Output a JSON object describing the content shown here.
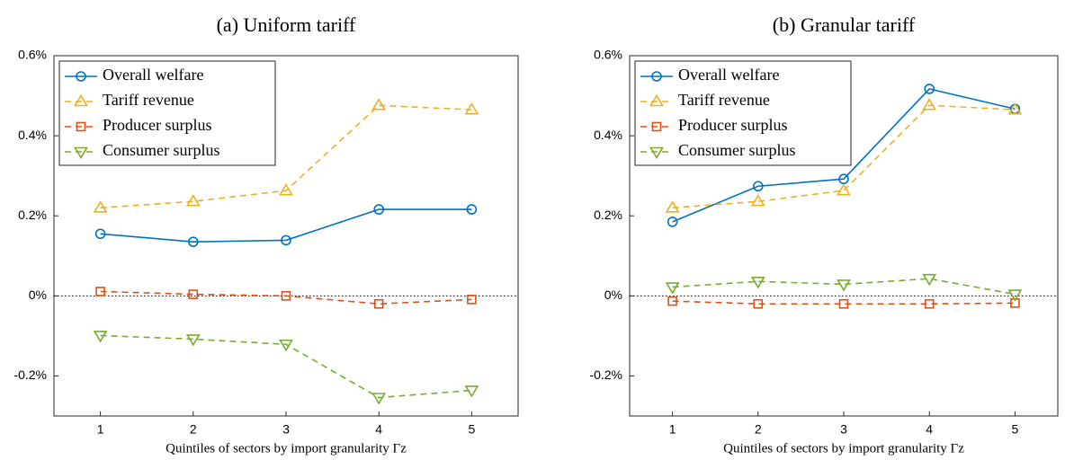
{
  "chart_data": [
    {
      "type": "line",
      "title": "(a) Uniform tariff",
      "xlabel": "Quintiles of sectors by import granularity Γz",
      "x": [
        1,
        2,
        3,
        4,
        5
      ],
      "xlim": [
        0.5,
        5.5
      ],
      "xticks": [
        1,
        2,
        3,
        4,
        5
      ],
      "ylim": [
        -0.3,
        0.6
      ],
      "yticks": [
        {
          "value": -0.2,
          "label": "-0.2%"
        },
        {
          "value": 0,
          "label": "0%"
        },
        {
          "value": 0.2,
          "label": "0.2%"
        },
        {
          "value": 0.4,
          "label": "0.4%"
        },
        {
          "value": 0.6,
          "label": "0.6%"
        }
      ],
      "legend": "upper left",
      "zero_line": true,
      "series": [
        {
          "name": "Overall welfare",
          "color": "#0072BD",
          "marker": "o",
          "linestyle": "solid",
          "values": [
            0.155,
            0.135,
            0.139,
            0.216,
            0.216
          ]
        },
        {
          "name": "Tariff revenue",
          "color": "#EDB120",
          "marker": "^",
          "linestyle": "dashed",
          "values": [
            0.22,
            0.236,
            0.263,
            0.476,
            0.465
          ]
        },
        {
          "name": "Producer surplus",
          "color": "#D95319",
          "marker": "s",
          "linestyle": "dashed",
          "values": [
            0.011,
            0.004,
            0.0,
            -0.02,
            -0.009
          ]
        },
        {
          "name": "Consumer surplus",
          "color": "#77AC30",
          "marker": "v",
          "linestyle": "dashed",
          "values": [
            -0.099,
            -0.108,
            -0.121,
            -0.254,
            -0.236
          ]
        }
      ]
    },
    {
      "type": "line",
      "title": "(b) Granular tariff",
      "xlabel": "Quintiles of sectors by import granularity Γz",
      "x": [
        1,
        2,
        3,
        4,
        5
      ],
      "xlim": [
        0.5,
        5.5
      ],
      "xticks": [
        1,
        2,
        3,
        4,
        5
      ],
      "ylim": [
        -0.3,
        0.6
      ],
      "yticks": [
        {
          "value": -0.2,
          "label": "-0.2%"
        },
        {
          "value": 0,
          "label": "0%"
        },
        {
          "value": 0.2,
          "label": "0.2%"
        },
        {
          "value": 0.4,
          "label": "0.4%"
        },
        {
          "value": 0.6,
          "label": "0.6%"
        }
      ],
      "legend": "upper left",
      "zero_line": true,
      "series": [
        {
          "name": "Overall welfare",
          "color": "#0072BD",
          "marker": "o",
          "linestyle": "solid",
          "values": [
            0.185,
            0.274,
            0.292,
            0.517,
            0.467
          ]
        },
        {
          "name": "Tariff revenue",
          "color": "#EDB120",
          "marker": "^",
          "linestyle": "dashed",
          "values": [
            0.22,
            0.236,
            0.263,
            0.476,
            0.465
          ]
        },
        {
          "name": "Producer surplus",
          "color": "#D95319",
          "marker": "s",
          "linestyle": "dashed",
          "values": [
            -0.013,
            -0.02,
            -0.02,
            -0.02,
            -0.018
          ]
        },
        {
          "name": "Consumer surplus",
          "color": "#77AC30",
          "marker": "v",
          "linestyle": "dashed",
          "values": [
            0.022,
            0.036,
            0.029,
            0.043,
            0.004
          ]
        }
      ]
    }
  ]
}
